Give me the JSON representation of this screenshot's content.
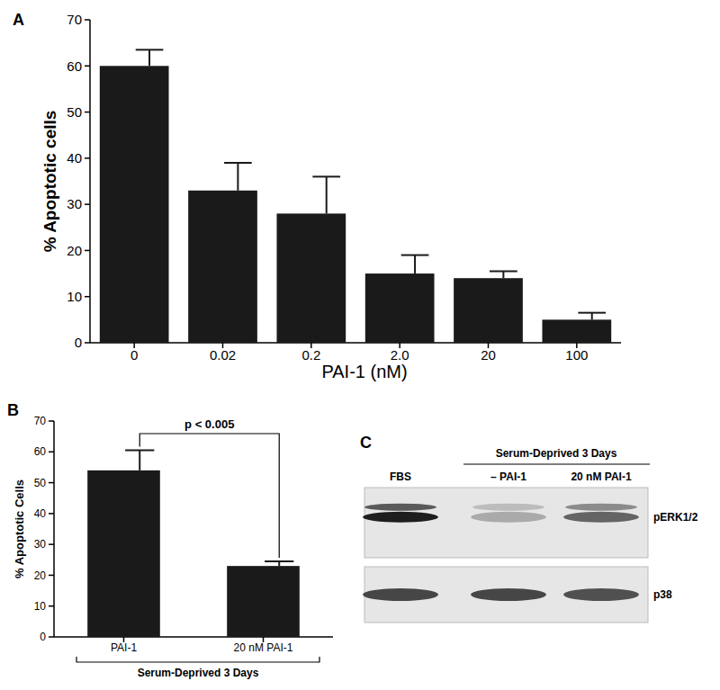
{
  "chart_data": [
    {
      "type": "bar",
      "title": "A",
      "categories": [
        "0",
        "0.02",
        "0.2",
        "2.0",
        "20",
        "100"
      ],
      "values": [
        60,
        33,
        28,
        15,
        14,
        5
      ],
      "errors": [
        3.5,
        6,
        8,
        4,
        1.5,
        1.5
      ],
      "color": "#1a1a1a",
      "x_label": "PAI-1 (nM)",
      "y_label": "% Apoptotic cells",
      "ylim": [
        0,
        70
      ],
      "yticks": [
        0,
        10,
        20,
        30,
        40,
        50,
        60,
        70
      ],
      "grid": false
    },
    {
      "type": "bar",
      "title": "B",
      "categories": [
        "PAI-1",
        "20 nM PAI-1"
      ],
      "values": [
        54,
        23
      ],
      "errors": [
        6.5,
        1.5
      ],
      "color": "#1a1a1a",
      "y_label": "% Apoptotic Cells",
      "group_label": "Serum-Deprived 3 Days",
      "annotations": [
        "p < 0.005"
      ],
      "ylim": [
        0,
        70
      ],
      "yticks": [
        0,
        10,
        20,
        30,
        40,
        50,
        60,
        70
      ],
      "grid": false
    }
  ],
  "blot": {
    "title": "C",
    "header": "Serum-Deprived 3 Days",
    "lanes": [
      "FBS",
      "– PAI-1",
      "20 nM PAI-1"
    ],
    "rows": [
      {
        "name": "pERK1/2",
        "intensity": [
          1.0,
          0.3,
          0.65
        ]
      },
      {
        "name": "p38",
        "intensity": [
          0.8,
          0.8,
          0.75
        ]
      }
    ]
  }
}
